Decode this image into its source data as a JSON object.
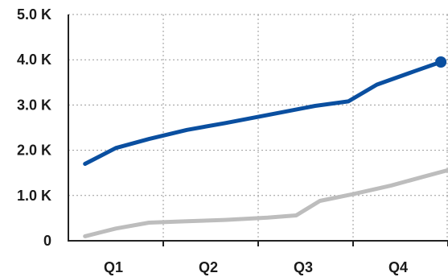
{
  "chart_data": {
    "type": "line",
    "categories": [
      "Q1",
      "Q2",
      "Q3",
      "Q4"
    ],
    "x_range": [
      0,
      8
    ],
    "yticks": [
      {
        "value": 0,
        "label": "0"
      },
      {
        "value": 1000,
        "label": "1.0 K"
      },
      {
        "value": 2000,
        "label": "2.0 K"
      },
      {
        "value": 3000,
        "label": "3.0 K"
      },
      {
        "value": 4000,
        "label": "4.0 K"
      },
      {
        "value": 5000,
        "label": "5.0 K"
      }
    ],
    "ylim": [
      0,
      5000
    ],
    "grid": "dotted",
    "series": [
      {
        "color": "#0a4fa0",
        "end_marker": true,
        "points": [
          [
            0.35,
            1700
          ],
          [
            1,
            2050
          ],
          [
            1.7,
            2250
          ],
          [
            2.5,
            2450
          ],
          [
            3.3,
            2600
          ],
          [
            4.2,
            2780
          ],
          [
            5.2,
            2980
          ],
          [
            5.9,
            3080
          ],
          [
            6.5,
            3450
          ],
          [
            7.3,
            3750
          ],
          [
            7.85,
            3950
          ]
        ]
      },
      {
        "color": "#bdbdbd",
        "end_marker": false,
        "points": [
          [
            0.35,
            100
          ],
          [
            1,
            270
          ],
          [
            1.7,
            400
          ],
          [
            2.5,
            430
          ],
          [
            3.3,
            460
          ],
          [
            4.2,
            510
          ],
          [
            4.8,
            560
          ],
          [
            5.3,
            880
          ],
          [
            6.0,
            1030
          ],
          [
            6.8,
            1220
          ],
          [
            7.5,
            1420
          ],
          [
            8.0,
            1560
          ]
        ]
      }
    ]
  }
}
